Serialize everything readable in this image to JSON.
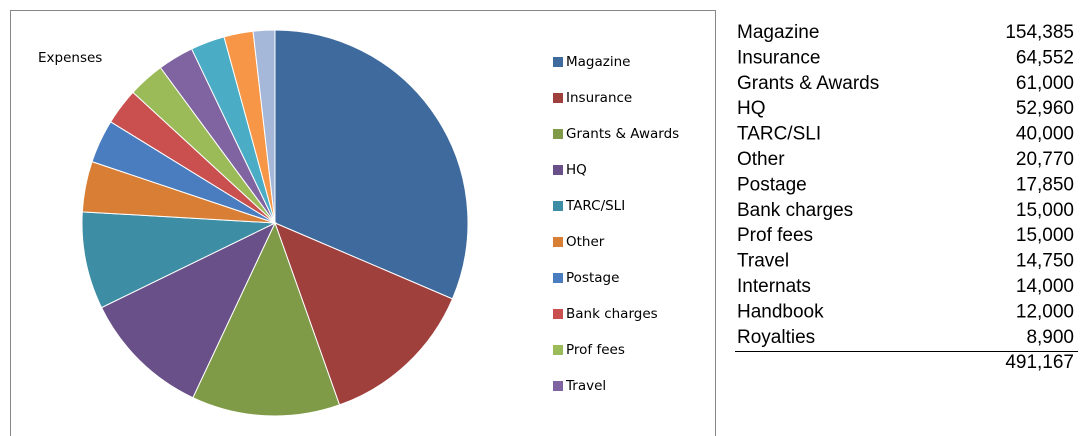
{
  "chart_data": {
    "type": "pie",
    "title": "Expenses",
    "categories": [
      "Magazine",
      "Insurance",
      "Grants & Awards",
      "HQ",
      "TARC/SLI",
      "Other",
      "Postage",
      "Bank charges",
      "Prof fees",
      "Travel",
      "Internats",
      "Handbook",
      "Royalties"
    ],
    "values": [
      154385,
      64552,
      61000,
      52960,
      40000,
      20770,
      17850,
      15000,
      15000,
      14750,
      14000,
      12000,
      8900
    ],
    "colors": [
      "#3f6a9e",
      "#a0403d",
      "#7f9b48",
      "#6a5088",
      "#3d8da5",
      "#d97f35",
      "#4a7dc0",
      "#c9504e",
      "#9bbb59",
      "#8064a2",
      "#4bacc6",
      "#f79646",
      "#a5b8da"
    ],
    "legend": "right"
  },
  "table": {
    "rows": [
      [
        "Magazine",
        "154,385"
      ],
      [
        "Insurance",
        "64,552"
      ],
      [
        "Grants & Awards",
        "61,000"
      ],
      [
        "HQ",
        "52,960"
      ],
      [
        "TARC/SLI",
        "40,000"
      ],
      [
        "Other",
        "20,770"
      ],
      [
        "Postage",
        "17,850"
      ],
      [
        "Bank charges",
        "15,000"
      ],
      [
        "Prof fees",
        "15,000"
      ],
      [
        "Travel",
        "14,750"
      ],
      [
        "Internats",
        "14,000"
      ],
      [
        "Handbook",
        "12,000"
      ],
      [
        "Royalties",
        "8,900"
      ]
    ],
    "total": "491,167"
  }
}
